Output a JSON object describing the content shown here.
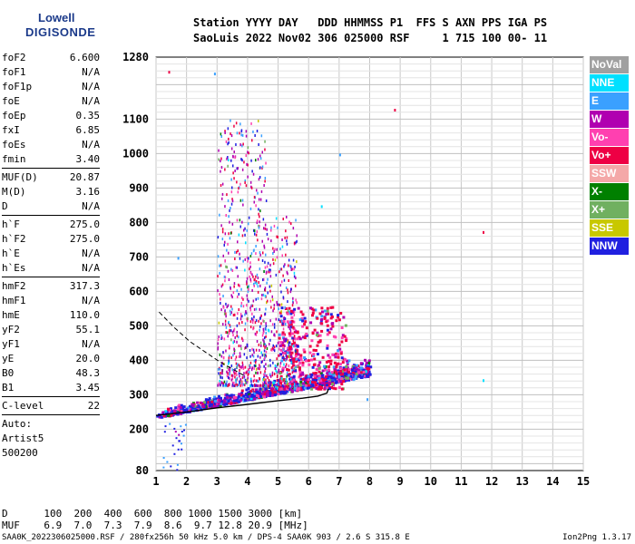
{
  "logo": {
    "line1": "Lowell",
    "line2": "DIGISONDE"
  },
  "header": {
    "line1": "Station YYYY DAY   DDD HHMMSS P1  FFS S AXN PPS IGA PS",
    "line2": "SaoLuis 2022 Nov02 306 025000 RSF     1 715 100 00- 11"
  },
  "params": [
    {
      "type": "row",
      "label": "foF2",
      "value": "6.600"
    },
    {
      "type": "row",
      "label": "foF1",
      "value": "N/A"
    },
    {
      "type": "row",
      "label": "foF1p",
      "value": "N/A"
    },
    {
      "type": "row",
      "label": "foE",
      "value": "N/A"
    },
    {
      "type": "row",
      "label": "foEp",
      "value": "0.35"
    },
    {
      "type": "row",
      "label": "fxI",
      "value": "6.85"
    },
    {
      "type": "row",
      "label": "foEs",
      "value": "N/A"
    },
    {
      "type": "row",
      "label": "fmin",
      "value": "3.40"
    },
    {
      "type": "sep"
    },
    {
      "type": "row",
      "label": "MUF(D)",
      "value": "20.87"
    },
    {
      "type": "row",
      "label": "M(D)",
      "value": "3.16"
    },
    {
      "type": "row",
      "label": "D",
      "value": "N/A"
    },
    {
      "type": "sep"
    },
    {
      "type": "row",
      "label": "h`F",
      "value": "275.0"
    },
    {
      "type": "row",
      "label": "h`F2",
      "value": "275.0"
    },
    {
      "type": "row",
      "label": "h`E",
      "value": "N/A"
    },
    {
      "type": "row",
      "label": "h`Es",
      "value": "N/A"
    },
    {
      "type": "sep"
    },
    {
      "type": "row",
      "label": "hmF2",
      "value": "317.3"
    },
    {
      "type": "row",
      "label": "hmF1",
      "value": "N/A"
    },
    {
      "type": "row",
      "label": "hmE",
      "value": "110.0"
    },
    {
      "type": "row",
      "label": "yF2",
      "value": "55.1"
    },
    {
      "type": "row",
      "label": "yF1",
      "value": "N/A"
    },
    {
      "type": "row",
      "label": "yE",
      "value": "20.0"
    },
    {
      "type": "row",
      "label": "B0",
      "value": "48.3"
    },
    {
      "type": "row",
      "label": "B1",
      "value": "3.45"
    },
    {
      "type": "sep"
    },
    {
      "type": "row",
      "label": "C-level",
      "value": "22"
    },
    {
      "type": "sep"
    },
    {
      "type": "text",
      "label": "Auto:"
    },
    {
      "type": "text",
      "label": "Artist5"
    },
    {
      "type": "text",
      "label": "500200"
    }
  ],
  "legend": [
    {
      "label": "NoVal",
      "color": "#a0a0a0"
    },
    {
      "label": "NNE",
      "color": "#00e0ff"
    },
    {
      "label": "E",
      "color": "#3aa0ff"
    },
    {
      "label": "W",
      "color": "#b000b0"
    },
    {
      "label": "Vo-",
      "color": "#ff40b0"
    },
    {
      "label": "Vo+",
      "color": "#ee0044"
    },
    {
      "label": "SSW",
      "color": "#f4a8a8"
    },
    {
      "label": "X-",
      "color": "#008000"
    },
    {
      "label": "X+",
      "color": "#70b060"
    },
    {
      "label": "SSE",
      "color": "#c8c800"
    },
    {
      "label": "NNW",
      "color": "#2020e0"
    }
  ],
  "bottom": {
    "d_line": "D      100  200  400  600  800 1000 1500 3000 [km]",
    "muf_line": "MUF    6.9  7.0  7.3  7.9  8.6  9.7 12.8 20.9 [MHz]",
    "footer_left": "SAA0K_2022306025000.RSF / 280fx256h 50 kHz 5.0 km / DPS-4 SAA0K 903 / 2.6 S 315.8 E",
    "footer_right": "Ion2Png 1.3.17"
  },
  "chart_data": {
    "type": "scatter",
    "title": "",
    "xlabel": "",
    "ylabel": "",
    "xlim": [
      1,
      15
    ],
    "ylim": [
      80,
      1280
    ],
    "x_ticks": [
      1,
      2,
      3,
      4,
      5,
      6,
      7,
      8,
      9,
      10,
      11,
      12,
      13,
      14,
      15
    ],
    "y_ticks": [
      80,
      200,
      300,
      400,
      500,
      600,
      700,
      800,
      900,
      1000,
      1100,
      1280
    ],
    "grid": true,
    "clusters": [
      {
        "name": "F-trace",
        "x_range": [
          1.0,
          8.0
        ],
        "y_center_at_x1": 245,
        "y_center_at_x7": 350,
        "y_spread": 40,
        "count": 1100
      },
      {
        "name": "F-echoes-column-3.5-4.5",
        "x_range": [
          3.0,
          4.6
        ],
        "y_range": [
          330,
          1100
        ],
        "count": 700
      },
      {
        "name": "Vo+ cluster",
        "x_range": [
          5.0,
          7.2
        ],
        "y_range": [
          320,
          560
        ],
        "count": 380
      },
      {
        "name": "extended-column-4.5-5.6",
        "x_range": [
          4.5,
          5.6
        ],
        "y_range": [
          320,
          820
        ],
        "count": 350
      },
      {
        "name": "low-echoes",
        "x_range": [
          1.2,
          2.0
        ],
        "y_range": [
          82,
          220
        ],
        "count": 25
      }
    ],
    "outliers": [
      {
        "x": 1.4,
        "y": 1240
      },
      {
        "x": 2.9,
        "y": 1235
      },
      {
        "x": 8.8,
        "y": 1130
      },
      {
        "x": 7.0,
        "y": 1000
      },
      {
        "x": 11.7,
        "y": 775
      },
      {
        "x": 11.7,
        "y": 345
      },
      {
        "x": 1.7,
        "y": 700
      },
      {
        "x": 7.9,
        "y": 290
      },
      {
        "x": 6.4,
        "y": 850
      }
    ],
    "profile_curve": [
      {
        "x": 1.0,
        "y": 240
      },
      {
        "x": 2.0,
        "y": 250
      },
      {
        "x": 3.0,
        "y": 262
      },
      {
        "x": 4.0,
        "y": 272
      },
      {
        "x": 5.0,
        "y": 283
      },
      {
        "x": 5.8,
        "y": 290
      },
      {
        "x": 6.3,
        "y": 296
      },
      {
        "x": 6.6,
        "y": 305
      },
      {
        "x": 6.65,
        "y": 317
      }
    ],
    "dashed_curve": [
      {
        "x": 1.1,
        "y": 540
      },
      {
        "x": 1.6,
        "y": 495
      },
      {
        "x": 2.1,
        "y": 455
      },
      {
        "x": 2.6,
        "y": 425
      },
      {
        "x": 3.1,
        "y": 395
      },
      {
        "x": 3.5,
        "y": 375
      },
      {
        "x": 3.9,
        "y": 355
      }
    ]
  }
}
